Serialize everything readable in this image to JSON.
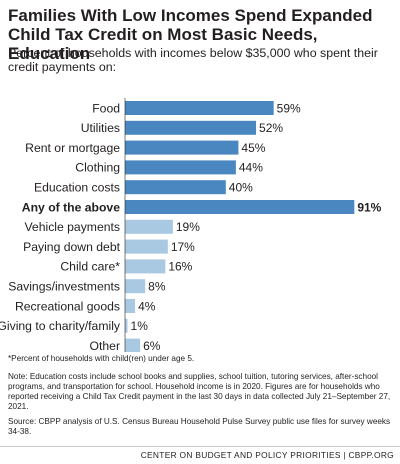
{
  "title": "Families With Low Incomes Spend Expanded Child Tax Credit on Most Basic Needs, Education",
  "subtitle": "Percent of households with incomes below $35,000 who spent their credit payments on:",
  "chart_data": {
    "type": "bar",
    "orientation": "horizontal",
    "categories": [
      "Food",
      "Utilities",
      "Rent or mortgage",
      "Clothing",
      "Education costs",
      "Any of the above",
      "Vehicle payments",
      "Paying down debt",
      "Child care*",
      "Savings/investments",
      "Recreational goods",
      "Giving to charity/family",
      "Other"
    ],
    "values": [
      59,
      52,
      45,
      44,
      40,
      91,
      19,
      17,
      16,
      8,
      4,
      1,
      6
    ],
    "value_labels": [
      "59%",
      "52%",
      "45%",
      "44%",
      "40%",
      "91%",
      "19%",
      "17%",
      "16%",
      "8%",
      "4%",
      "1%",
      "6%"
    ],
    "highlighted_category": "Any of the above",
    "colors": {
      "primary": "#4a87c0",
      "secondary": "#a9c8e2"
    },
    "xlim": [
      0,
      100
    ],
    "grid": false,
    "legend": "none"
  },
  "footnote": "*Percent of households with child(ren) under age 5.",
  "note": "Note: Education costs include school books and supplies, school tuition, tutoring services, after-school programs, and transportation for school. Household income is in 2020. Figures are for households who reported receiving a Child Tax Credit payment in the last 30 days in data collected July 21–September 27, 2021.",
  "source": "Source: CBPP analysis of U.S. Census Bureau Household Pulse Survey public use files for survey weeks 34-38.",
  "credit": "CENTER ON BUDGET AND POLICY PRIORITIES | CBPP.ORG"
}
